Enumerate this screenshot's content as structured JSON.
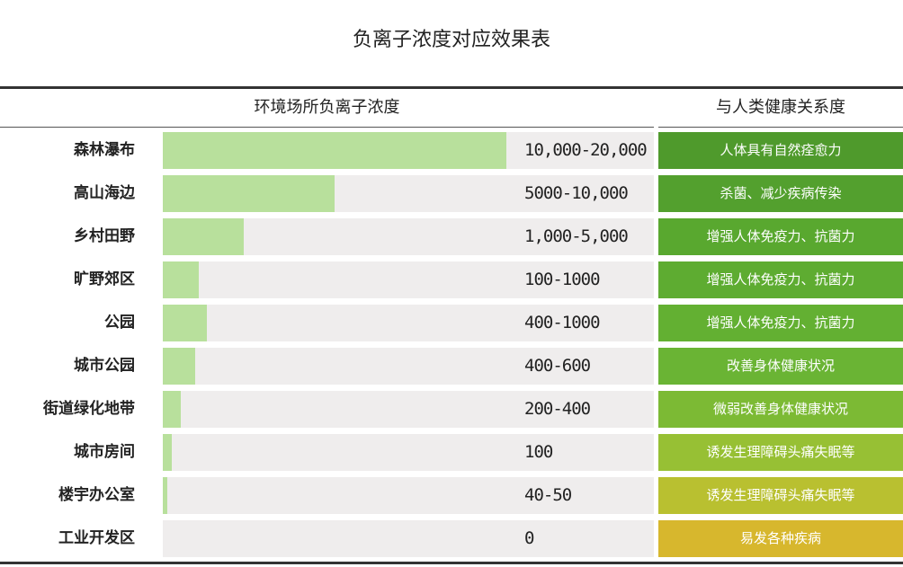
{
  "title": "负离子浓度对应效果表",
  "header": {
    "left": "环境场所负离子浓度",
    "right": "与人类健康关系度"
  },
  "chart_data": {
    "type": "bar",
    "orientation": "horizontal",
    "title": "负离子浓度对应效果表",
    "categories": [
      "森林瀑布",
      "高山海边",
      "乡村田野",
      "旷野郊区",
      "公园",
      "城市公园",
      "街道绿化地带",
      "城市房间",
      "楼宇办公室",
      "工业开发区"
    ],
    "range_labels": [
      "10,000-20,000",
      "5000-10,000",
      "1,000-5,000",
      "100-1000",
      "400-1000",
      "400-600",
      "200-400",
      "100",
      "40-50",
      "0"
    ],
    "effects": [
      "人体具有自然痊愈力",
      "杀菌、减少疾病传染",
      "增强人体免疫力、抗菌力",
      "增强人体免疫力、抗菌力",
      "增强人体免疫力、抗菌力",
      "改善身体健康状况",
      "微弱改善身体健康状况",
      "诱发生理障碍头痛失眠等",
      "诱发生理障碍头痛失眠等",
      "易发各种疾病"
    ],
    "bar_fraction": [
      0.7,
      0.35,
      0.165,
      0.073,
      0.09,
      0.066,
      0.037,
      0.018,
      0.009,
      0.0
    ],
    "bar_color": "#b8e09c",
    "track_color": "#efeded",
    "effect_colors": [
      "#4f9a2c",
      "#53a02e",
      "#59a82f",
      "#5eac31",
      "#63b032",
      "#6ab434",
      "#7cba34",
      "#97c034",
      "#b9c030",
      "#d7b72d"
    ]
  }
}
